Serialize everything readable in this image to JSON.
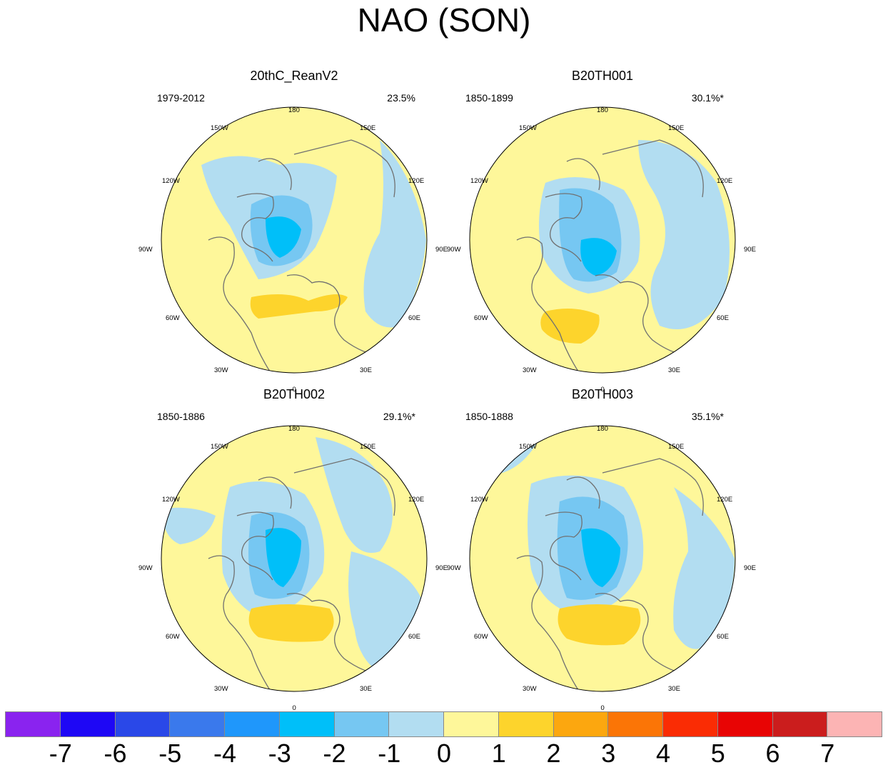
{
  "title": "NAO (SON)",
  "panels": [
    {
      "name": "20thC_ReanV2",
      "period": "1979-2012",
      "variance": "23.5%",
      "lon_labels": {
        "top": "180",
        "bottom": "0",
        "left": "90W",
        "right": "90E",
        "ul1": "150W",
        "ul2": "120W",
        "ur1": "150E",
        "ur2": "120E",
        "ll1": "60W",
        "ll2": "30W",
        "lr1": "60E",
        "lr2": "30E"
      }
    },
    {
      "name": "B20TH001",
      "period": "1850-1899",
      "variance": "30.1%*",
      "lon_labels": {
        "top": "180",
        "bottom": "0",
        "left": "90W",
        "right": "90E",
        "ul1": "150W",
        "ul2": "120W",
        "ur1": "150E",
        "ur2": "120E",
        "ll1": "60W",
        "ll2": "30W",
        "lr1": "60E",
        "lr2": "30E"
      }
    },
    {
      "name": "B20TH002",
      "period": "1850-1886",
      "variance": "29.1%*",
      "lon_labels": {
        "top": "180",
        "bottom": "0",
        "left": "90W",
        "right": "90E",
        "ul1": "150W",
        "ul2": "120W",
        "ur1": "150E",
        "ur2": "120E",
        "ll1": "60W",
        "ll2": "30W",
        "lr1": "60E",
        "lr2": "30E"
      }
    },
    {
      "name": "B20TH003",
      "period": "1850-1888",
      "variance": "35.1%*",
      "lon_labels": {
        "top": "180",
        "bottom": "0",
        "left": "90W",
        "right": "90E",
        "ul1": "150W",
        "ul2": "120W",
        "ur1": "150E",
        "ur2": "120E",
        "ll1": "60W",
        "ll2": "30W",
        "lr1": "60E",
        "lr2": "30E"
      }
    }
  ],
  "colorbar": {
    "colors": [
      "#8a23ef",
      "#1e07f5",
      "#2a48e8",
      "#3a79ec",
      "#1f97fb",
      "#00bff9",
      "#76c7f2",
      "#b2ddf1",
      "#fef79a",
      "#fdd42c",
      "#fca70f",
      "#fb7506",
      "#fa2c04",
      "#e80404",
      "#cb1d1d",
      "#fcb4b4"
    ],
    "labels": [
      "-7",
      "-6",
      "-5",
      "-4",
      "-3",
      "-2",
      "-1",
      "0",
      "1",
      "2",
      "3",
      "4",
      "5",
      "6",
      "7"
    ]
  },
  "colors": {
    "land_outline": "#707070",
    "positive_light": "#fef79a",
    "negative_light": "#b2ddf1"
  }
}
